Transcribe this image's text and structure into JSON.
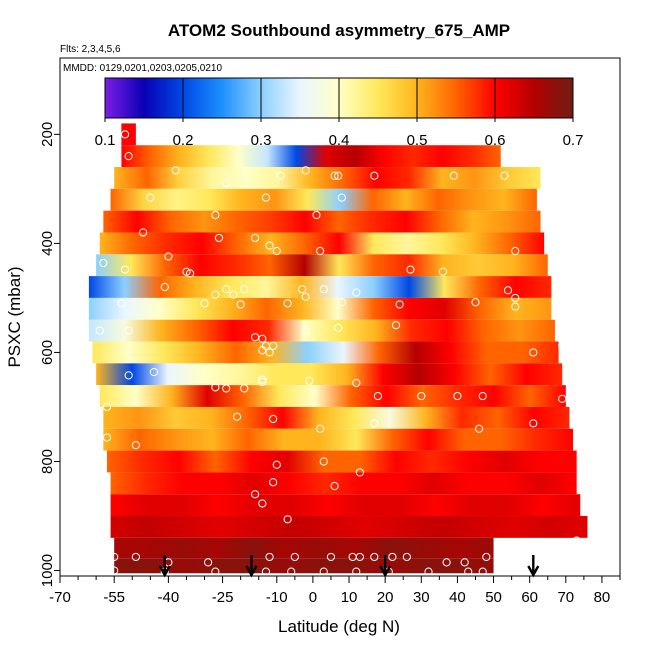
{
  "chart_data": {
    "type": "heatmap",
    "title": "ATOM2 Southbound asymmetry_675_AMP",
    "flights_note": "Flts: 2,3,4,5,6",
    "dates_note": "MMDD: 0129,0201,0203,0205,0210",
    "xlabel": "Latitude (deg N)",
    "ylabel": "PSXC (mbar)",
    "xlim": [
      -70,
      85
    ],
    "ylim": [
      1010,
      60
    ],
    "x_ticks": [
      -70,
      -55,
      -40,
      -25,
      -10,
      0,
      10,
      20,
      30,
      40,
      50,
      60,
      70,
      80
    ],
    "x_tick_labels": [
      "-70",
      "-55",
      "-40",
      "-25",
      "-10",
      "0",
      "10",
      "20",
      "30",
      "40",
      "50",
      "60",
      "70",
      "80"
    ],
    "y_ticks": [
      200,
      400,
      600,
      800,
      1000
    ],
    "y_tick_labels": [
      "200",
      "400",
      "600",
      "800",
      "1000"
    ],
    "colorbar": {
      "min": 0.1,
      "max": 0.7,
      "ticks": [
        0.1,
        0.2,
        0.3,
        0.4,
        0.5,
        0.6,
        0.7
      ],
      "tick_labels": [
        "0.1",
        "0.2",
        "0.3",
        "0.4",
        "0.5",
        "0.6",
        "0.7"
      ],
      "stops": [
        "#7b1ee6",
        "#0a00b4",
        "#0048e6",
        "#1e90ff",
        "#8cd0ff",
        "#eaf6ff",
        "#ffffc8",
        "#ffe85a",
        "#ffb41e",
        "#ff6400",
        "#ff0000",
        "#b40000",
        "#6e1e14"
      ]
    },
    "layers": [
      {
        "p": 200,
        "lat_min": -53,
        "lat_max": -49,
        "values": [
          0.6
        ]
      },
      {
        "p": 240,
        "lat_min": -53,
        "lat_max": 52,
        "values": [
          0.6,
          0.55,
          0.5,
          0.45,
          0.4,
          0.33,
          0.2,
          0.62,
          0.65,
          0.6,
          0.58,
          0.6,
          0.58,
          0.55
        ]
      },
      {
        "p": 280,
        "lat_min": -55,
        "lat_max": 63,
        "values": [
          0.5,
          0.55,
          0.47,
          0.42,
          0.4,
          0.42,
          0.5,
          0.55,
          0.6,
          0.58,
          0.5,
          0.52,
          0.48,
          0.45
        ]
      },
      {
        "p": 320,
        "lat_min": -56,
        "lat_max": 62,
        "values": [
          0.55,
          0.47,
          0.43,
          0.45,
          0.5,
          0.52,
          0.45,
          0.3,
          0.55,
          0.5,
          0.55,
          0.52,
          0.5,
          0.55
        ]
      },
      {
        "p": 360,
        "lat_min": -58,
        "lat_max": 63,
        "values": [
          0.55,
          0.6,
          0.55,
          0.52,
          0.55,
          0.57,
          0.6,
          0.55,
          0.58,
          0.6,
          0.55,
          0.5,
          0.52,
          0.55
        ]
      },
      {
        "p": 400,
        "lat_min": -59,
        "lat_max": 64,
        "values": [
          0.5,
          0.55,
          0.58,
          0.6,
          0.55,
          0.5,
          0.55,
          0.6,
          0.45,
          0.42,
          0.45,
          0.5,
          0.55,
          0.6
        ]
      },
      {
        "p": 440,
        "lat_min": -60,
        "lat_max": 65,
        "values": [
          0.3,
          0.45,
          0.55,
          0.6,
          0.58,
          0.55,
          0.65,
          0.45,
          0.55,
          0.58,
          0.5,
          0.48,
          0.5,
          0.55
        ]
      },
      {
        "p": 480,
        "lat_min": -62,
        "lat_max": 66,
        "values": [
          0.2,
          0.3,
          0.55,
          0.5,
          0.45,
          0.42,
          0.5,
          0.35,
          0.3,
          0.2,
          0.45,
          0.55,
          0.6,
          0.58
        ]
      },
      {
        "p": 520,
        "lat_min": -62,
        "lat_max": 66,
        "values": [
          0.3,
          0.35,
          0.4,
          0.45,
          0.5,
          0.55,
          0.5,
          0.4,
          0.55,
          0.6,
          0.62,
          0.55,
          0.5,
          0.52
        ]
      },
      {
        "p": 560,
        "lat_min": -62,
        "lat_max": 67,
        "values": [
          0.33,
          0.38,
          0.5,
          0.55,
          0.6,
          0.58,
          0.4,
          0.45,
          0.5,
          0.58,
          0.6,
          0.55,
          0.52,
          0.55
        ]
      },
      {
        "p": 600,
        "lat_min": -61,
        "lat_max": 68,
        "values": [
          0.45,
          0.4,
          0.45,
          0.5,
          0.55,
          0.5,
          0.3,
          0.35,
          0.55,
          0.65,
          0.6,
          0.55,
          0.55,
          0.58
        ]
      },
      {
        "p": 640,
        "lat_min": -60,
        "lat_max": 69,
        "values": [
          0.5,
          0.2,
          0.35,
          0.4,
          0.42,
          0.45,
          0.45,
          0.5,
          0.6,
          0.65,
          0.6,
          0.55,
          0.6,
          0.58
        ]
      },
      {
        "p": 680,
        "lat_min": -59,
        "lat_max": 70,
        "values": [
          0.45,
          0.4,
          0.5,
          0.62,
          0.55,
          0.45,
          0.4,
          0.55,
          0.6,
          0.55,
          0.58,
          0.6,
          0.55,
          0.6
        ]
      },
      {
        "p": 720,
        "lat_min": -58,
        "lat_max": 71,
        "values": [
          0.5,
          0.52,
          0.48,
          0.5,
          0.55,
          0.6,
          0.5,
          0.45,
          0.38,
          0.5,
          0.58,
          0.55,
          0.6,
          0.58
        ]
      },
      {
        "p": 760,
        "lat_min": -58,
        "lat_max": 72,
        "values": [
          0.5,
          0.55,
          0.52,
          0.5,
          0.55,
          0.5,
          0.5,
          0.45,
          0.55,
          0.6,
          0.55,
          0.55,
          0.58,
          0.6
        ]
      },
      {
        "p": 800,
        "lat_min": -57,
        "lat_max": 73,
        "values": [
          0.55,
          0.58,
          0.6,
          0.55,
          0.6,
          0.62,
          0.55,
          0.55,
          0.6,
          0.58,
          0.6,
          0.62,
          0.6,
          0.6
        ]
      },
      {
        "p": 840,
        "lat_min": -56,
        "lat_max": 73,
        "values": [
          0.55,
          0.58,
          0.6,
          0.6,
          0.62,
          0.6,
          0.58,
          0.6,
          0.6,
          0.62,
          0.6,
          0.6,
          0.62,
          0.6
        ]
      },
      {
        "p": 880,
        "lat_min": -56,
        "lat_max": 74,
        "values": [
          0.6,
          0.62,
          0.62,
          0.6,
          0.62,
          0.62,
          0.6,
          0.62,
          0.62,
          0.6,
          0.62,
          0.62,
          0.6,
          0.62
        ]
      },
      {
        "p": 920,
        "lat_min": -56,
        "lat_max": 76,
        "values": [
          0.63,
          0.64,
          0.63,
          0.62,
          0.63,
          0.64,
          0.63,
          0.62,
          0.63,
          0.64,
          0.63,
          0.62,
          0.63,
          0.62
        ]
      },
      {
        "p": 960,
        "lat_min": -55,
        "lat_max": 50,
        "values": [
          0.66,
          0.66,
          0.67,
          0.66,
          0.68,
          0.66,
          0.67,
          0.66,
          0.68,
          0.67,
          0.66,
          0.67
        ]
      },
      {
        "p": 995,
        "lat_min": -55,
        "lat_max": 50,
        "values": [
          0.68,
          0.68,
          0.67,
          0.68,
          0.68,
          0.67,
          0.68,
          0.68,
          0.67,
          0.68,
          0.68,
          0.67
        ]
      }
    ],
    "sample_points": [
      [
        -52,
        200
      ],
      [
        -51,
        240
      ],
      [
        -38,
        266
      ],
      [
        -24,
        290
      ],
      [
        -2,
        266
      ],
      [
        -9,
        276
      ],
      [
        6,
        276
      ],
      [
        7,
        276
      ],
      [
        17,
        276
      ],
      [
        39,
        276
      ],
      [
        53,
        276
      ],
      [
        -45,
        316
      ],
      [
        -13,
        316
      ],
      [
        8,
        316
      ],
      [
        -27,
        348
      ],
      [
        1,
        348
      ],
      [
        -47,
        380
      ],
      [
        -26,
        390
      ],
      [
        -16,
        390
      ],
      [
        -12,
        404
      ],
      [
        -10,
        414
      ],
      [
        2,
        414
      ],
      [
        56,
        414
      ],
      [
        -58,
        436
      ],
      [
        -40,
        424
      ],
      [
        -52,
        448
      ],
      [
        -35,
        452
      ],
      [
        -34,
        455
      ],
      [
        27,
        448
      ],
      [
        36,
        452
      ],
      [
        -41,
        480
      ],
      [
        -24,
        484
      ],
      [
        -27,
        494
      ],
      [
        -22,
        494
      ],
      [
        -19,
        484
      ],
      [
        -3,
        484
      ],
      [
        3,
        484
      ],
      [
        12,
        490
      ],
      [
        54,
        486
      ],
      [
        56,
        500
      ],
      [
        -53,
        510
      ],
      [
        -30,
        510
      ],
      [
        -20,
        512
      ],
      [
        -2,
        498
      ],
      [
        8,
        508
      ],
      [
        45,
        508
      ],
      [
        56,
        516
      ],
      [
        -7,
        510
      ],
      [
        24,
        512
      ],
      [
        -59,
        560
      ],
      [
        -51,
        560
      ],
      [
        7,
        555
      ],
      [
        23,
        550
      ],
      [
        -2,
        560
      ],
      [
        -16,
        572
      ],
      [
        -14,
        575
      ],
      [
        -13,
        588
      ],
      [
        -14,
        596
      ],
      [
        -12,
        600
      ],
      [
        -11,
        588
      ],
      [
        69,
        588
      ],
      [
        61,
        600
      ],
      [
        -44,
        636
      ],
      [
        -51,
        642
      ],
      [
        -27,
        664
      ],
      [
        -24,
        666
      ],
      [
        -19,
        666
      ],
      [
        -14,
        654
      ],
      [
        -14,
        650
      ],
      [
        -1,
        652
      ],
      [
        12,
        656
      ],
      [
        18,
        680
      ],
      [
        30,
        680
      ],
      [
        40,
        680
      ],
      [
        47,
        680
      ],
      [
        69,
        685
      ],
      [
        -57,
        700
      ],
      [
        -21,
        718
      ],
      [
        -11,
        722
      ],
      [
        17,
        730
      ],
      [
        2,
        740
      ],
      [
        46,
        740
      ],
      [
        61,
        730
      ],
      [
        -57,
        756
      ],
      [
        -49,
        770
      ],
      [
        3,
        800
      ],
      [
        -10,
        806
      ],
      [
        13,
        820
      ],
      [
        -11,
        838
      ],
      [
        -16,
        860
      ],
      [
        6,
        845
      ],
      [
        -14,
        877
      ],
      [
        -7,
        906
      ],
      [
        -55,
        975
      ],
      [
        -49,
        975
      ],
      [
        -40,
        985
      ],
      [
        -29,
        985
      ],
      [
        -12,
        975
      ],
      [
        -5,
        975
      ],
      [
        5,
        975
      ],
      [
        11,
        975
      ],
      [
        13,
        975
      ],
      [
        17,
        975
      ],
      [
        22,
        975
      ],
      [
        26,
        975
      ],
      [
        37,
        985
      ],
      [
        42,
        985
      ],
      [
        48,
        975
      ],
      [
        -55,
        1000
      ],
      [
        -41,
        1002
      ],
      [
        -27,
        1002
      ],
      [
        -13,
        1002
      ],
      [
        -6,
        1002
      ],
      [
        3,
        1002
      ],
      [
        12,
        1002
      ],
      [
        21,
        1002
      ],
      [
        32,
        1002
      ],
      [
        43,
        1002
      ],
      [
        47,
        1002
      ],
      [
        73,
        945
      ]
    ],
    "arrows_lat": [
      -41,
      -17,
      20,
      61
    ]
  }
}
